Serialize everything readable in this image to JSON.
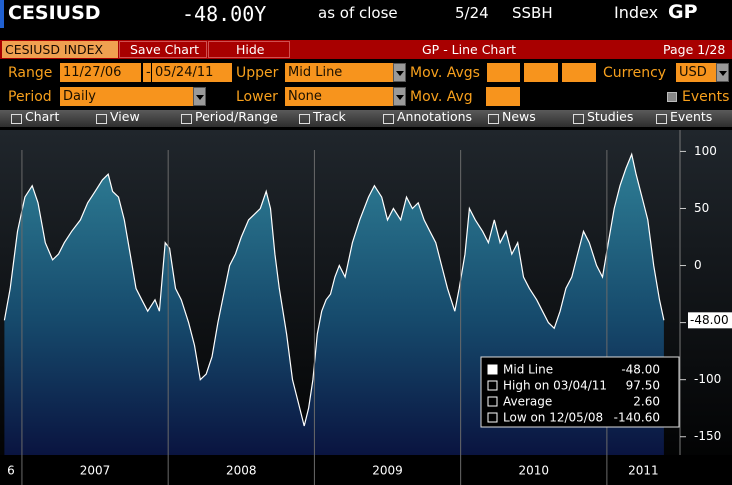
{
  "header": {
    "ticker": "CESIUSD",
    "value": "-48.00Y",
    "as_of": "as of close",
    "date": "5/24",
    "source": "SSBH",
    "index": "Index",
    "function": "GP"
  },
  "tabs": {
    "security": "CESIUSD INDEX",
    "save": "Save Chart",
    "hide": "Hide",
    "title": "GP - Line Chart",
    "page": "Page 1/28"
  },
  "controls": {
    "range_label": "Range",
    "start": "11/27/06",
    "dash": "-",
    "end": "05/24/11",
    "upper_label": "Upper",
    "upper": "Mid Line",
    "mov_avgs_label": "Mov. Avgs",
    "currency_label": "Currency",
    "currency": "USD",
    "period_label": "Period",
    "period": "Daily",
    "lower_label": "Lower",
    "lower": "None",
    "mov_avg_label": "Mov. Avg",
    "events_label": "Events"
  },
  "toolbar": [
    "Chart",
    "View",
    "Period/Range",
    "Track",
    "Annotations",
    "News",
    "Studies",
    "Events"
  ],
  "chart_data": {
    "type": "area",
    "x": [
      2006.88,
      2006.92,
      2006.97,
      2007.02,
      2007.07,
      2007.11,
      2007.16,
      2007.21,
      2007.25,
      2007.29,
      2007.34,
      2007.4,
      2007.45,
      2007.5,
      2007.55,
      2007.59,
      2007.62,
      2007.66,
      2007.7,
      2007.74,
      2007.78,
      2007.82,
      2007.86,
      2007.91,
      2007.94,
      2007.98,
      2008.01,
      2008.05,
      2008.09,
      2008.14,
      2008.18,
      2008.22,
      2008.26,
      2008.3,
      2008.34,
      2008.38,
      2008.42,
      2008.46,
      2008.5,
      2008.55,
      2008.59,
      2008.63,
      2008.67,
      2008.7,
      2008.73,
      2008.76,
      2008.81,
      2008.85,
      2008.89,
      2008.93,
      2008.96,
      2008.99,
      2009.02,
      2009.05,
      2009.08,
      2009.11,
      2009.14,
      2009.17,
      2009.21,
      2009.26,
      2009.31,
      2009.37,
      2009.41,
      2009.46,
      2009.5,
      2009.54,
      2009.59,
      2009.63,
      2009.67,
      2009.71,
      2009.75,
      2009.79,
      2009.83,
      2009.87,
      2009.91,
      2009.96,
      2009.99,
      2010.03,
      2010.06,
      2010.1,
      2010.15,
      2010.19,
      2010.23,
      2010.27,
      2010.31,
      2010.35,
      2010.39,
      2010.43,
      2010.47,
      2010.52,
      2010.56,
      2010.6,
      2010.64,
      2010.68,
      2010.72,
      2010.76,
      2010.8,
      2010.84,
      2010.88,
      2010.93,
      2010.97,
      2011.01,
      2011.05,
      2011.09,
      2011.13,
      2011.17,
      2011.2,
      2011.24,
      2011.28,
      2011.32,
      2011.36,
      2011.39
    ],
    "series": [
      {
        "name": "Mid Line",
        "color": "#ffffff",
        "values": [
          -48,
          -20,
          30,
          60,
          70,
          55,
          20,
          5,
          10,
          20,
          30,
          40,
          55,
          65,
          75,
          80,
          65,
          60,
          40,
          10,
          -20,
          -30,
          -40,
          -30,
          -40,
          20,
          15,
          -20,
          -30,
          -50,
          -70,
          -100,
          -95,
          -80,
          -50,
          -25,
          0,
          10,
          25,
          40,
          45,
          50,
          65,
          50,
          10,
          -20,
          -60,
          -100,
          -120,
          -140.6,
          -125,
          -100,
          -60,
          -40,
          -30,
          -25,
          -10,
          0,
          -10,
          20,
          40,
          60,
          70,
          60,
          40,
          50,
          40,
          60,
          50,
          55,
          40,
          30,
          20,
          0,
          -20,
          -40,
          -20,
          10,
          50,
          40,
          30,
          20,
          40,
          20,
          30,
          10,
          20,
          -10,
          -20,
          -30,
          -40,
          -50,
          -55,
          -40,
          -20,
          -10,
          10,
          30,
          20,
          0,
          -10,
          20,
          50,
          70,
          85,
          97.5,
          80,
          60,
          40,
          0,
          -30,
          -48
        ]
      }
    ],
    "last_label": "-48.00",
    "legend": [
      {
        "label": "Mid Line",
        "value": "-48.00"
      },
      {
        "label": "High on 03/04/11",
        "value": "97.50"
      },
      {
        "label": "Average",
        "value": "2.60"
      },
      {
        "label": "Low on 12/05/08",
        "value": "-140.60"
      }
    ],
    "xlim": [
      2006.85,
      2011.5
    ],
    "xticks": [
      {
        "value": 2006,
        "label": "6"
      },
      2007,
      2008,
      2009,
      2010,
      2011
    ],
    "ylim": [
      -166,
      110
    ],
    "yticks": [
      100,
      50,
      0,
      -50,
      -100,
      -150
    ],
    "grid": false
  }
}
